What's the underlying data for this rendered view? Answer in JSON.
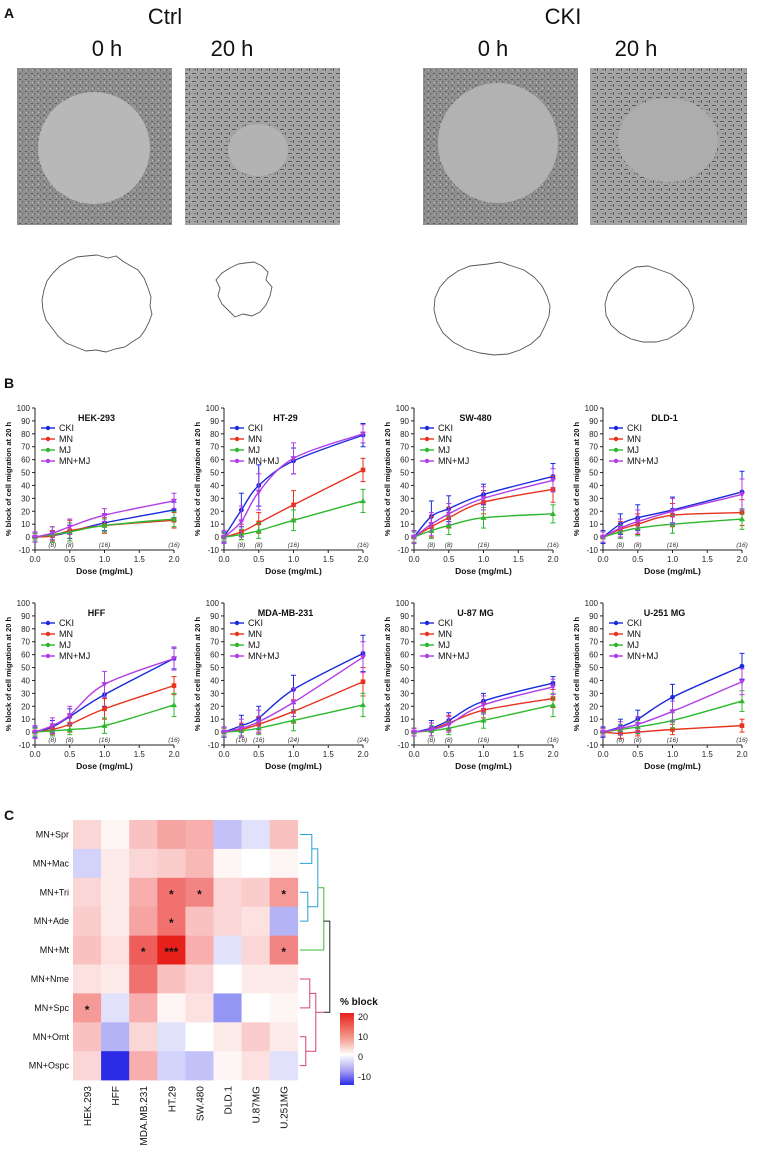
{
  "panel_a": {
    "label": "A",
    "groups": [
      {
        "name": "Ctrl",
        "times": [
          "0 h",
          "20 h"
        ]
      },
      {
        "name": "CKI",
        "times": [
          "0 h",
          "20 h"
        ]
      }
    ]
  },
  "panel_b_label": "B",
  "panel_c_label": "C",
  "colors": {
    "CKI": "#1a2bdc",
    "MN": "#e8321e",
    "MJ": "#2db82d",
    "MN+MJ": "#b13de6"
  },
  "chart_data": [
    {
      "type": "line",
      "title": "HEK-293",
      "xlabel": "Dose (mg/mL)",
      "ylabel": "% block of cell migration at 20 h",
      "xlim": [
        0,
        2
      ],
      "ylim": [
        -10,
        100
      ],
      "xticks": [
        "0.0",
        "0.5",
        "1.0",
        "1.5",
        "2.0"
      ],
      "yticks": [
        "-10",
        "0",
        "10",
        "20",
        "30",
        "40",
        "50",
        "60",
        "70",
        "80",
        "90",
        "100"
      ],
      "x": [
        0,
        0.25,
        0.5,
        1.0,
        2.0
      ],
      "n_labels": [
        {
          "x": 0.25,
          "text": "(8)"
        },
        {
          "x": 0.5,
          "text": "(8)"
        },
        {
          "x": 1.0,
          "text": "(16)"
        },
        {
          "x": 2.0,
          "text": "(16)"
        }
      ],
      "series": [
        {
          "name": "CKI",
          "values": [
            0,
            1,
            4,
            11,
            21
          ],
          "errors": [
            3,
            4,
            5,
            6,
            6
          ]
        },
        {
          "name": "MN",
          "values": [
            0,
            1,
            5,
            9,
            13
          ],
          "errors": [
            3,
            4,
            8,
            6,
            6
          ]
        },
        {
          "name": "MJ",
          "values": [
            0,
            2,
            4,
            9,
            14
          ],
          "errors": [
            3,
            6,
            7,
            5,
            6
          ]
        },
        {
          "name": "MN+MJ",
          "values": [
            0,
            3,
            8,
            17,
            28
          ],
          "errors": [
            4,
            5,
            6,
            5,
            6
          ]
        }
      ]
    },
    {
      "type": "line",
      "title": "HT-29",
      "xlabel": "Dose (mg/mL)",
      "ylabel": "% block of cell migration at 20 h",
      "xlim": [
        0,
        2
      ],
      "ylim": [
        -10,
        100
      ],
      "xticks": [
        "0.0",
        "0.5",
        "1.0",
        "1.5",
        "2.0"
      ],
      "yticks": [
        "-10",
        "0",
        "10",
        "20",
        "30",
        "40",
        "50",
        "60",
        "70",
        "80",
        "90",
        "100"
      ],
      "x": [
        0,
        0.25,
        0.5,
        1.0,
        2.0
      ],
      "n_labels": [
        {
          "x": 0.25,
          "text": "(8)"
        },
        {
          "x": 0.5,
          "text": "(8)"
        },
        {
          "x": 1.0,
          "text": "(16)"
        },
        {
          "x": 2.0,
          "text": "(16)"
        }
      ],
      "series": [
        {
          "name": "CKI",
          "values": [
            0,
            21,
            40,
            59,
            79
          ],
          "errors": [
            4,
            13,
            16,
            10,
            9
          ]
        },
        {
          "name": "MN",
          "values": [
            0,
            4,
            11,
            25,
            52
          ],
          "errors": [
            3,
            6,
            8,
            11,
            9
          ]
        },
        {
          "name": "MJ",
          "values": [
            0,
            2,
            5,
            13,
            28
          ],
          "errors": [
            3,
            4,
            6,
            8,
            9
          ]
        },
        {
          "name": "MN+MJ",
          "values": [
            0,
            12,
            35,
            61,
            80
          ],
          "errors": [
            5,
            12,
            14,
            12,
            7
          ]
        }
      ]
    },
    {
      "type": "line",
      "title": "SW-480",
      "xlabel": "Dose (mg/mL)",
      "ylabel": "% block of cell migration at 20 h",
      "xlim": [
        0,
        2
      ],
      "ylim": [
        -10,
        100
      ],
      "xticks": [
        "0.0",
        "0.5",
        "1.0",
        "1.5",
        "2.0"
      ],
      "yticks": [
        "-10",
        "0",
        "10",
        "20",
        "30",
        "40",
        "50",
        "60",
        "70",
        "80",
        "90",
        "100"
      ],
      "x": [
        0,
        0.25,
        0.5,
        1.0,
        2.0
      ],
      "n_labels": [
        {
          "x": 0.25,
          "text": "(8)"
        },
        {
          "x": 0.5,
          "text": "(8)"
        },
        {
          "x": 1.0,
          "text": "(16)"
        },
        {
          "x": 2.0,
          "text": "(16)"
        }
      ],
      "series": [
        {
          "name": "CKI",
          "values": [
            0,
            16,
            22,
            33,
            47
          ],
          "errors": [
            5,
            12,
            10,
            8,
            10
          ]
        },
        {
          "name": "MN",
          "values": [
            0,
            8,
            15,
            27,
            37
          ],
          "errors": [
            4,
            8,
            8,
            9,
            10
          ]
        },
        {
          "name": "MJ",
          "values": [
            0,
            5,
            9,
            15,
            18
          ],
          "errors": [
            4,
            6,
            7,
            8,
            7
          ]
        },
        {
          "name": "MN+MJ",
          "values": [
            0,
            10,
            18,
            30,
            44
          ],
          "errors": [
            5,
            9,
            8,
            9,
            9
          ]
        }
      ]
    },
    {
      "type": "line",
      "title": "DLD-1",
      "xlabel": "Dose (mg/mL)",
      "ylabel": "% block of cell migration at 20 h",
      "xlim": [
        0,
        2
      ],
      "ylim": [
        -10,
        100
      ],
      "xticks": [
        "0.0",
        "0.5",
        "1.0",
        "1.5",
        "2.0"
      ],
      "yticks": [
        "-10",
        "0",
        "10",
        "20",
        "30",
        "40",
        "50",
        "60",
        "70",
        "80",
        "90",
        "100"
      ],
      "x": [
        0,
        0.25,
        0.5,
        1.0,
        2.0
      ],
      "n_labels": [
        {
          "x": 0.25,
          "text": "(8)"
        },
        {
          "x": 0.5,
          "text": "(8)"
        },
        {
          "x": 1.0,
          "text": "(16)"
        },
        {
          "x": 2.0,
          "text": "(16)"
        }
      ],
      "series": [
        {
          "name": "CKI",
          "values": [
            0,
            10,
            15,
            21,
            35
          ],
          "errors": [
            5,
            8,
            10,
            10,
            16
          ]
        },
        {
          "name": "MN",
          "values": [
            0,
            6,
            10,
            17,
            19
          ],
          "errors": [
            4,
            6,
            8,
            9,
            10
          ]
        },
        {
          "name": "MJ",
          "values": [
            0,
            4,
            7,
            10,
            14
          ],
          "errors": [
            4,
            5,
            6,
            7,
            8
          ]
        },
        {
          "name": "MN+MJ",
          "values": [
            0,
            7,
            12,
            20,
            33
          ],
          "errors": [
            4,
            7,
            9,
            10,
            12
          ]
        }
      ]
    },
    {
      "type": "line",
      "title": "HFF",
      "xlabel": "Dose (mg/mL)",
      "ylabel": "% block of cell migration at 20 h",
      "xlim": [
        0,
        2
      ],
      "ylim": [
        -10,
        100
      ],
      "xticks": [
        "0.0",
        "0.5",
        "1.0",
        "1.5",
        "2.0"
      ],
      "yticks": [
        "-10",
        "0",
        "10",
        "20",
        "30",
        "40",
        "50",
        "60",
        "70",
        "80",
        "90",
        "100"
      ],
      "x": [
        0,
        0.25,
        0.5,
        1.0,
        2.0
      ],
      "n_labels": [
        {
          "x": 0.25,
          "text": "(8)"
        },
        {
          "x": 0.5,
          "text": "(8)"
        },
        {
          "x": 1.0,
          "text": "(16)"
        },
        {
          "x": 2.0,
          "text": "(16)"
        }
      ],
      "series": [
        {
          "name": "CKI",
          "values": [
            0,
            4,
            12,
            29,
            57
          ],
          "errors": [
            4,
            5,
            6,
            9,
            8
          ]
        },
        {
          "name": "MN",
          "values": [
            0,
            2,
            6,
            18,
            36
          ],
          "errors": [
            3,
            4,
            6,
            8,
            7
          ]
        },
        {
          "name": "MJ",
          "values": [
            0,
            1,
            2,
            5,
            21
          ],
          "errors": [
            3,
            4,
            4,
            6,
            9
          ]
        },
        {
          "name": "MN+MJ",
          "values": [
            0,
            5,
            13,
            37,
            57
          ],
          "errors": [
            5,
            6,
            7,
            10,
            9
          ]
        }
      ]
    },
    {
      "type": "line",
      "title": "MDA-MB-231",
      "xlabel": "Dose (mg/mL)",
      "ylabel": "% block of cell migration at 20 h",
      "xlim": [
        0,
        2
      ],
      "ylim": [
        -10,
        100
      ],
      "xticks": [
        "0.0",
        "0.5",
        "1.0",
        "1.5",
        "2.0"
      ],
      "yticks": [
        "-10",
        "0",
        "10",
        "20",
        "30",
        "40",
        "50",
        "60",
        "70",
        "80",
        "90",
        "100"
      ],
      "x": [
        0,
        0.25,
        0.5,
        1.0,
        2.0
      ],
      "n_labels": [
        {
          "x": 0.25,
          "text": "(16)"
        },
        {
          "x": 0.5,
          "text": "(16)"
        },
        {
          "x": 1.0,
          "text": "(24)"
        },
        {
          "x": 2.0,
          "text": "(24)"
        }
      ],
      "series": [
        {
          "name": "CKI",
          "values": [
            0,
            5,
            11,
            33,
            61
          ],
          "errors": [
            4,
            8,
            9,
            11,
            14
          ]
        },
        {
          "name": "MN",
          "values": [
            0,
            2,
            6,
            16,
            39
          ],
          "errors": [
            3,
            5,
            6,
            9,
            11
          ]
        },
        {
          "name": "MJ",
          "values": [
            0,
            1,
            3,
            9,
            21
          ],
          "errors": [
            3,
            4,
            5,
            8,
            9
          ]
        },
        {
          "name": "MN+MJ",
          "values": [
            0,
            3,
            8,
            23,
            58
          ],
          "errors": [
            4,
            7,
            9,
            11,
            12
          ]
        }
      ]
    },
    {
      "type": "line",
      "title": "U-87 MG",
      "xlabel": "Dose (mg/mL)",
      "ylabel": "% block of cell migration at 20 h",
      "xlim": [
        0,
        2
      ],
      "ylim": [
        -10,
        100
      ],
      "xticks": [
        "0.0",
        "0.5",
        "1.0",
        "1.5",
        "2.0"
      ],
      "yticks": [
        "-10",
        "0",
        "10",
        "20",
        "30",
        "40",
        "50",
        "60",
        "70",
        "80",
        "90",
        "100"
      ],
      "x": [
        0,
        0.25,
        0.5,
        1.0,
        2.0
      ],
      "n_labels": [
        {
          "x": 0.25,
          "text": "(8)"
        },
        {
          "x": 0.5,
          "text": "(8)"
        },
        {
          "x": 1.0,
          "text": "(16)"
        },
        {
          "x": 2.0,
          "text": "(16)"
        }
      ],
      "series": [
        {
          "name": "CKI",
          "values": [
            0,
            3,
            9,
            24,
            38
          ],
          "errors": [
            3,
            6,
            6,
            6,
            5
          ]
        },
        {
          "name": "MN",
          "values": [
            0,
            2,
            7,
            17,
            26
          ],
          "errors": [
            3,
            5,
            6,
            6,
            7
          ]
        },
        {
          "name": "MJ",
          "values": [
            0,
            1,
            3,
            9,
            21
          ],
          "errors": [
            3,
            4,
            5,
            6,
            9
          ]
        },
        {
          "name": "MN+MJ",
          "values": [
            0,
            2,
            6,
            21,
            35
          ],
          "errors": [
            3,
            5,
            6,
            7,
            6
          ]
        }
      ]
    },
    {
      "type": "line",
      "title": "U-251 MG",
      "xlabel": "Dose (mg/mL)",
      "ylabel": "% block of cell migration at 20 h",
      "xlim": [
        0,
        2
      ],
      "ylim": [
        -10,
        100
      ],
      "xticks": [
        "0.0",
        "0.5",
        "1.0",
        "1.5",
        "2.0"
      ],
      "yticks": [
        "-10",
        "0",
        "10",
        "20",
        "30",
        "40",
        "50",
        "60",
        "70",
        "80",
        "90",
        "100"
      ],
      "x": [
        0,
        0.25,
        0.5,
        1.0,
        2.0
      ],
      "n_labels": [
        {
          "x": 0.25,
          "text": "(8)"
        },
        {
          "x": 0.5,
          "text": "(8)"
        },
        {
          "x": 1.0,
          "text": "(16)"
        },
        {
          "x": 2.0,
          "text": "(16)"
        }
      ],
      "series": [
        {
          "name": "CKI",
          "values": [
            0,
            4,
            10,
            27,
            51
          ],
          "errors": [
            4,
            6,
            7,
            10,
            10
          ]
        },
        {
          "name": "MN",
          "values": [
            0,
            -1,
            0,
            2,
            5
          ],
          "errors": [
            3,
            4,
            3,
            4,
            5
          ]
        },
        {
          "name": "MJ",
          "values": [
            0,
            2,
            4,
            9,
            24
          ],
          "errors": [
            3,
            4,
            5,
            6,
            8
          ]
        },
        {
          "name": "MN+MJ",
          "values": [
            0,
            3,
            6,
            16,
            39
          ],
          "errors": [
            3,
            5,
            6,
            8,
            10
          ]
        }
      ]
    },
    {
      "type": "heatmap",
      "rows": [
        "MN+Spr",
        "MN+Mac",
        "MN+Tri",
        "MN+Ade",
        "MN+Mt",
        "MN+Nme",
        "MN+Spc",
        "MN+Omt",
        "MN+Ospc"
      ],
      "columns": [
        "HEK.293",
        "HFF",
        "MDA.MB.231",
        "HT.29",
        "SW.480",
        "DLD.1",
        "U.87MG",
        "U.251MG"
      ],
      "values": [
        [
          4,
          1,
          6,
          9,
          8,
          -4,
          -2,
          6
        ],
        [
          -3,
          2,
          4,
          5,
          7,
          1,
          0,
          1
        ],
        [
          4,
          2,
          8,
          14,
          12,
          4,
          5,
          10
        ],
        [
          5,
          2,
          9,
          14,
          6,
          4,
          3,
          -5
        ],
        [
          6,
          3,
          16,
          22,
          8,
          -2,
          4,
          12
        ],
        [
          3,
          2,
          14,
          6,
          4,
          0,
          2,
          2
        ],
        [
          10,
          -2,
          8,
          1,
          3,
          -7,
          0,
          1
        ],
        [
          6,
          -5,
          4,
          -2,
          0,
          2,
          5,
          2
        ],
        [
          4,
          -14,
          8,
          -3,
          -4,
          1,
          3,
          -2
        ]
      ],
      "stars": [
        {
          "row": 2,
          "col": 3,
          "text": "*"
        },
        {
          "row": 2,
          "col": 4,
          "text": "*"
        },
        {
          "row": 2,
          "col": 7,
          "text": "*"
        },
        {
          "row": 3,
          "col": 3,
          "text": "*"
        },
        {
          "row": 4,
          "col": 2,
          "text": "*"
        },
        {
          "row": 4,
          "col": 3,
          "text": "***"
        },
        {
          "row": 4,
          "col": 7,
          "text": "*"
        },
        {
          "row": 6,
          "col": 0,
          "text": "*"
        }
      ],
      "colorbar": {
        "title": "% block",
        "ticks": [
          "20",
          "10",
          "0",
          "-10"
        ],
        "min": -14,
        "max": 22
      }
    }
  ]
}
